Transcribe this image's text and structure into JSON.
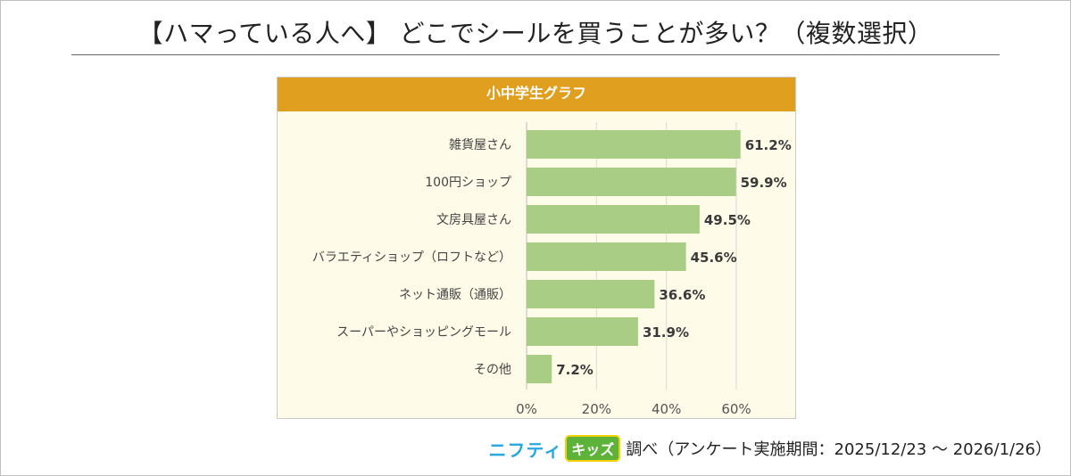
{
  "page": {
    "title": "【ハマっている人へ】 どこでシールを買うことが多い？（複数選択）"
  },
  "chart_data": {
    "type": "bar",
    "orientation": "horizontal",
    "title": "小中学生グラフ",
    "categories": [
      "雑貨屋さん",
      "100円ショップ",
      "文房具屋さん",
      "バラエティショップ（ロフトなど）",
      "ネット通販（通販）",
      "スーパーやショッピングモール",
      "その他"
    ],
    "values": [
      61.2,
      59.9,
      49.5,
      45.6,
      36.6,
      31.9,
      7.2
    ],
    "value_labels": [
      "61.2%",
      "59.9%",
      "49.5%",
      "45.6%",
      "36.6%",
      "31.9%",
      "7.2%"
    ],
    "xlim": [
      0,
      60
    ],
    "x_ticks": [
      0,
      20,
      40,
      60
    ],
    "x_tick_labels": [
      "0%",
      "20%",
      "40%",
      "60%"
    ],
    "grid": true,
    "bar_color": "#a9cd85",
    "header_color": "#e09f1f"
  },
  "footer": {
    "logo_part1": "ニフティ",
    "logo_part2": "キッズ",
    "text": "調べ（アンケート実施期間：2025/12/23 ～ 2026/1/26）"
  }
}
